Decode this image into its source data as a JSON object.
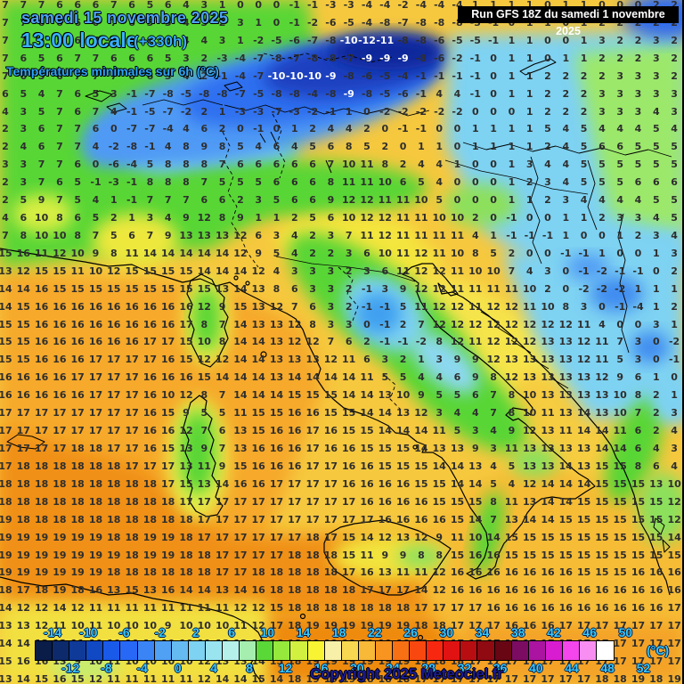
{
  "header": {
    "date_line": "samedi 15 novembre 2025",
    "time_line": "13:00 locale",
    "offset": "(+330h)",
    "subtitle": "Températures minimales sur 6h (°C)",
    "run_info": "Run GFS 18Z du samedi 1 novembre 2025"
  },
  "footer": {
    "copyright": "Copyright 2025 Meteociel.fr",
    "unit_label": "(°C)"
  },
  "colors": {
    "title_date": "#4da2f4",
    "title_time": "#38b0f8",
    "subtitle": "#2ea6f8",
    "scale_label": "#38c8fa",
    "copyright": "#1c1c96",
    "number_default": "#2e2e2e",
    "number_cold": "#ffffff"
  },
  "scale": {
    "swatches": [
      "#0a1c48",
      "#0d2a6c",
      "#0f3a98",
      "#1148c4",
      "#1a5ae8",
      "#2768f6",
      "#3a84f6",
      "#50a0f4",
      "#66baf2",
      "#7ed2f2",
      "#9ae4f0",
      "#b6f0ea",
      "#a6eeb0",
      "#5ad838",
      "#96e83c",
      "#d2f040",
      "#f8f434",
      "#f8f0a8",
      "#f8d850",
      "#f8b838",
      "#f89420",
      "#f87014",
      "#f84810",
      "#f82810",
      "#e01212",
      "#b80e12",
      "#900a12",
      "#680614",
      "#7c0c62",
      "#aa14a0",
      "#d81cd0",
      "#f446ec",
      "#f88ef2",
      "#ffffff"
    ],
    "labels_top": [
      "-14",
      "-10",
      "-6",
      "-2",
      "2",
      "6",
      "10",
      "14",
      "18",
      "22",
      "26",
      "30",
      "34",
      "38",
      "42",
      "46",
      "50"
    ],
    "labels_bottom": [
      "-12",
      "-8",
      "-4",
      "0",
      "4",
      "8",
      "12",
      "16",
      "20",
      "24",
      "28",
      "32",
      "36",
      "40",
      "44",
      "48",
      "52"
    ]
  },
  "map_grid": {
    "cols": 38,
    "rows": [
      "7 7 7 6 6 6 7 6 5 6 4 3 1 0 0 0 -1 -1 -3 -3 -4 -4 -2 -4 -4 -4 1 1 1 1 0 1 1 0 0 0 2 2",
      "7 7 6 6 6 6 7 6 5 5 4 3 2 3 1 0 -1 -2 -6 -5 -4 -8 -7 -8 -8 -8 -3 -1 0 1 1 0 1 2 2 2 2 2",
      "7 7 6 5 6 7 7 6 6 5 4 4 3 1 -2 -5 -6 -7 -8 -10 -12 -11 -8 -8 -6 -5 -5 -1 1 1 0 0 1 3 2 2 3 2",
      "7 6 5 6 7 7 6 6 6 5 3 2 -3 -4 -7 -8 -7 -8 -8 -7 -9 -9 -9 -8 -6 -2 -1 0 1 1 0 1 1 2 2 2 3 2",
      "7 6 5 6 7 7 7 6 6 5 4 2 -1 -4 -7 -10 -10 -10 -9 -8 -6 -5 -4 -1 -1 -1 -1 0 1 1 2 2 2 2 3 3 3 2",
      "6 5 4 7 6 5 3 -1 -7 -8 -5 -8 -8 -7 -5 -8 -8 -4 -8 -9 -8 -5 -6 -1 4 4 -1 0 1 1 2 2 2 3 3 3 3 3",
      "4 3 5 7 6 7 4 -1 -5 -7 -2 2 1 -3 -3 -7 -3 -2 -1 1 0 -2 -2 -2 -2 -2 0 0 0 1 2 2 2 3 3 3 4 3",
      "2 3 6 7 7 6 0 -7 -7 -4 4 6 2 0 -1 0 1 2 4 4 2 0 -1 -1 0 0 1 1 1 1 5 4 5 4 4 4 5 4",
      "2 4 6 7 7 4 -2 -8 -1 4 8 9 8 5 4 6 4 5 6 8 5 2 0 1 1 0 1 1 1 1 2 4 5 6 6 5 5 5",
      "3 3 7 7 6 0 -6 -4 5 8 8 8 7 6 6 6 6 6 7 10 11 8 2 4 4 1 0 0 1 3 4 4 5 5 5 5 5 5",
      "2 3 7 6 5 -1 -3 -1 8 8 8 7 5 5 5 6 6 6 8 11 11 10 6 5 4 0 0 0 1 2 3 4 5 5 5 6 6 6",
      "2 5 9 7 5 4 1 -1 7 7 7 6 6 2 3 5 6 6 9 12 12 11 11 10 5 0 0 0 1 1 2 3 4 4 4 4 5 5",
      "4 6 10 8 6 5 2 1 3 4 9 12 8 9 1 1 2 5 6 10 12 12 11 11 10 10 2 0 -1 0 0 1 1 2 3 3 4 5",
      "7 8 10 10 8 7 5 6 7 9 13 13 13 12 6 3 4 2 3 7 11 12 11 11 11 11 4 1 -1 -1 -1 1 0 0 1 2 3 4",
      "15 16 11 12 10 9 8 11 14 14 14 14 14 12 9 5 4 2 2 3 6 10 11 12 11 10 8 5 2 0 0 -1 -1 1 0 0 1 3",
      "13 12 15 15 11 10 12 15 15 15 15 14 14 14 12 4 3 3 3 2 3 6 11 12 12 11 10 10 7 4 3 0 -1 -2 -1 -1 0 2",
      "14 14 16 15 15 15 15 15 15 15 15 15 13 14 13 8 6 3 3 2 -1 3 9 12 12 11 11 11 11 10 2 0 -2 -2 -2 1 1 1",
      "14 15 16 16 16 16 16 16 16 16 16 12 9 15 13 12 7 6 3 2 -1 -1 5 11 12 12 11 12 12 11 10 8 3 0 -1 -4 1 2",
      "15 15 16 16 16 16 16 16 16 16 17 8 7 14 13 13 12 8 3 3 0 -1 2 7 12 12 12 12 12 12 12 12 11 4 0 0 3 1",
      "15 15 16 16 16 16 16 16 17 17 15 10 8 14 14 13 12 12 7 6 2 -1 -1 -2 8 12 11 12 12 12 13 13 12 11 7 3 0 -2",
      "15 15 16 16 16 17 17 17 17 16 15 12 12 14 14 13 13 13 12 11 6 3 2 1 3 9 9 12 13 13 13 13 12 11 5 3 0 -1",
      "16 16 16 16 17 17 17 17 16 16 16 15 14 14 14 13 14 14 14 14 11 5 5 4 4 6 9 8 12 13 13 13 13 12 9 6 1 0",
      "16 16 16 16 16 17 17 17 16 10 12 8 7 14 14 14 15 15 15 14 14 13 10 9 5 5 6 7 8 10 13 13 13 13 10 8 2 1",
      "17 17 17 17 17 17 17 17 16 15 9 5 5 11 15 15 16 16 15 15 14 14 13 12 3 4 4 7 8 10 11 13 14 13 10 7 2 3",
      "17 17 17 17 17 17 17 17 16 16 12 7 6 13 15 16 16 17 16 15 15 14 14 14 11 5 3 4 9 12 13 11 14 14 11 6 2 4",
      "17 17 17 17 18 18 17 17 16 15 13 9 7 13 16 16 16 17 16 16 15 15 15 14 13 13 9 3 11 13 13 13 13 14 14 6 4 3",
      "17 18 18 18 18 18 18 17 17 17 13 11 9 15 16 16 16 17 17 16 16 15 15 15 14 14 13 4 5 13 13 14 13 15 15 8 6 4",
      "18 18 18 18 18 18 18 18 18 17 15 13 14 16 16 17 17 17 17 16 16 16 16 15 15 14 14 5 4 12 14 14 14 15 15 15 13 10",
      "18 18 18 18 18 18 18 18 18 18 17 17 17 17 17 17 17 17 17 17 16 16 16 16 15 15 15 8 11 13 14 14 15 15 15 15 15 12",
      "19 18 18 18 18 18 18 18 18 18 18 17 17 17 17 17 17 17 17 17 17 16 16 16 16 15 14 7 13 14 14 15 15 15 15 15 15 12",
      "19 19 19 19 19 19 18 18 19 19 18 17 17 17 17 17 17 18 17 15 14 12 13 12 9 11 10 14 15 15 15 15 15 15 15 15 15 14",
      "19 19 19 19 19 19 19 18 19 19 18 18 17 17 17 17 18 18 18 15 11 9 9 8 8 15 16 16 15 15 15 15 15 15 15 15 15 15",
      "19 19 19 19 19 19 18 18 18 18 18 18 17 17 18 18 18 18 18 17 16 13 11 11 12 16 16 16 16 16 16 16 15 15 15 16 16 16",
      "18 17 18 19 18 16 13 15 13 16 14 14 13 14 16 18 18 18 18 18 17 17 17 14 12 16 16 16 16 16 16 16 16 16 16 16 16 16",
      "14 12 12 14 12 11 11 11 11 11 11 11 11 12 12 15 18 18 18 18 18 18 18 17 17 17 17 16 16 16 16 16 16 16 16 16 16 17",
      "13 13 12 11 10 11 10 10 10 9 10 10 10 11 12 17 18 19 19 19 19 19 19 18 18 17 17 17 16 16 16 17 17 17 17 17 17 17",
      "14 14 13 12 11 10 10 10 10 10 10 11 12 12 13 16 18 19 19 19 19 19 19 18 18 17 17 17 17 17 17 17 17 17 17 17 17 17",
      "15 16 16 13 9 10 11 10 10 10 10 12 13 13 14 15 18 19 19 19 19 19 19 19 18 18 17 17 17 17 17 17 17 17 17 17 17 17",
      "13 14 15 16 15 12 11 11 11 11 11 12 14 14 15 14 18 19 19 19 18 18 18 17 17 17 17 17 17 17 17 17 17 18 18 19 18 19"
    ]
  }
}
